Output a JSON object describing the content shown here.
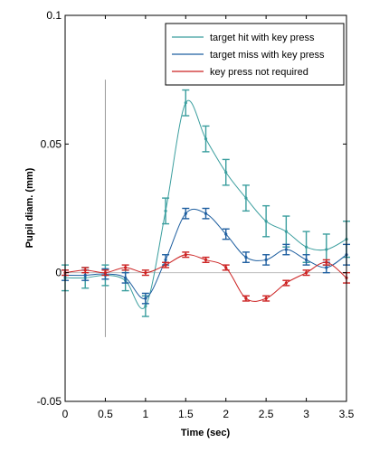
{
  "chart_data": {
    "type": "line",
    "title": "",
    "xlabel": "Time (sec)",
    "ylabel": "Pupil diam. (mm)",
    "xlim": [
      0,
      3.5
    ],
    "ylim": [
      -0.05,
      0.1
    ],
    "xticks": [
      "0",
      "0.5",
      "1",
      "1.5",
      "2",
      "2.5",
      "3",
      "3.5"
    ],
    "yticks": [
      "-0.05",
      "0",
      "0.05",
      "0.1"
    ],
    "grid": false,
    "legend_position": "top-right",
    "reference_lines": [
      {
        "orientation": "vertical",
        "value": 0.5,
        "from": -0.025,
        "to": 0.075
      },
      {
        "orientation": "horizontal",
        "value": 0
      }
    ],
    "x": [
      0,
      0.25,
      0.5,
      0.75,
      1,
      1.25,
      1.5,
      1.75,
      2,
      2.25,
      2.5,
      2.75,
      3,
      3.25,
      3.5
    ],
    "series": [
      {
        "name": "target hit with key press",
        "color": "#3a9e9e",
        "values": [
          -0.002,
          -0.002,
          -0.001,
          -0.003,
          -0.013,
          0.024,
          0.066,
          0.052,
          0.039,
          0.029,
          0.02,
          0.016,
          0.01,
          0.009,
          0.013
        ],
        "errors": [
          0.005,
          0.004,
          0.004,
          0.004,
          0.004,
          0.005,
          0.005,
          0.005,
          0.005,
          0.005,
          0.006,
          0.006,
          0.006,
          0.006,
          0.007
        ]
      },
      {
        "name": "target miss with key press",
        "color": "#1f5fa0",
        "values": [
          -0.001,
          -0.001,
          -0.0005,
          -0.002,
          -0.01,
          0.005,
          0.023,
          0.023,
          0.015,
          0.006,
          0.005,
          0.009,
          0.005,
          0.002,
          0.007
        ],
        "errors": [
          0.002,
          0.002,
          0.002,
          0.002,
          0.002,
          0.002,
          0.002,
          0.002,
          0.002,
          0.002,
          0.002,
          0.002,
          0.002,
          0.002,
          0.004
        ]
      },
      {
        "name": "key press not required",
        "color": "#cc2222",
        "values": [
          0,
          0.001,
          0,
          0.002,
          0.0,
          0.003,
          0.007,
          0.005,
          0.002,
          -0.01,
          -0.01,
          -0.004,
          0,
          0.004,
          -0.002
        ],
        "errors": [
          0.001,
          0.001,
          0.001,
          0.001,
          0.001,
          0.001,
          0.001,
          0.001,
          0.001,
          0.001,
          0.001,
          0.001,
          0.001,
          0.001,
          0.002
        ]
      }
    ]
  }
}
